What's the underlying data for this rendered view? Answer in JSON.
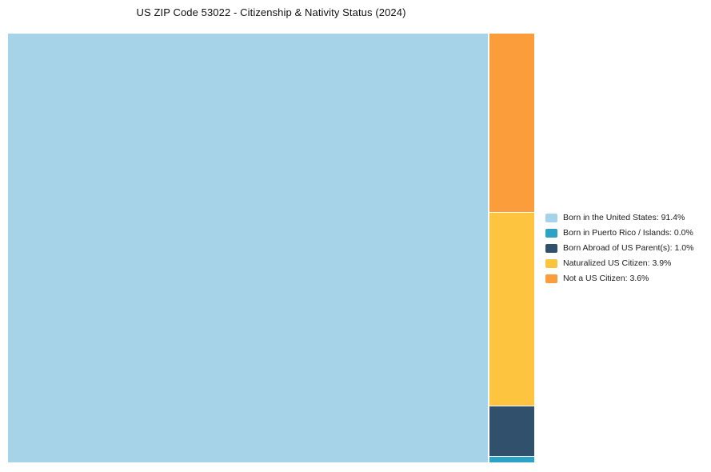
{
  "title": "US ZIP Code 53022 - Citizenship & Nativity Status (2024)",
  "chart_data": {
    "type": "treemap",
    "title": "US ZIP Code 53022 - Citizenship & Nativity Status (2024)",
    "categories": [
      "Born in the United States",
      "Born in Puerto Rico / Islands",
      "Born Abroad of US Parent(s)",
      "Naturalized US Citizen",
      "Not a US Citizen"
    ],
    "values": [
      91.4,
      0.0,
      1.0,
      3.9,
      3.6
    ],
    "unit": "%",
    "colors": [
      "#A7D3E9",
      "#2CA2C6",
      "#31506B",
      "#FDC43F",
      "#FB9D3B"
    ],
    "legend_position": "right",
    "layout": "large block left, minor categories stacked in right column (top to bottom: Not a US Citizen, Naturalized US Citizen, Born Abroad of US Parent(s), Born in Puerto Rico / Islands)"
  },
  "legend": {
    "items": [
      {
        "label": "Born in the United States: 91.4%",
        "color": "#A7D3E9"
      },
      {
        "label": "Born in Puerto Rico / Islands: 0.0%",
        "color": "#2CA2C6"
      },
      {
        "label": "Born Abroad of US Parent(s): 1.0%",
        "color": "#31506B"
      },
      {
        "label": "Naturalized US Citizen: 3.9%",
        "color": "#FDC43F"
      },
      {
        "label": "Not a US Citizen: 3.6%",
        "color": "#FB9D3B"
      }
    ]
  }
}
